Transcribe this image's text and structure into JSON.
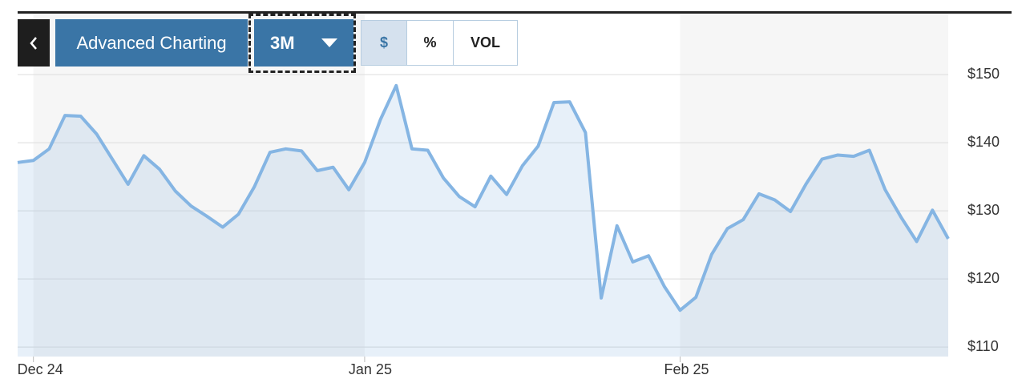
{
  "toolbar": {
    "title": "Advanced Charting",
    "range": "3M",
    "modes": [
      "$",
      "%",
      "VOL"
    ]
  },
  "chart_data": {
    "type": "area",
    "categories": [
      null,
      "Dec 24",
      null,
      null,
      null,
      null,
      null,
      null,
      null,
      null,
      null,
      null,
      null,
      null,
      null,
      null,
      null,
      null,
      null,
      null,
      null,
      null,
      "Jan 25",
      null,
      null,
      null,
      null,
      null,
      null,
      null,
      null,
      null,
      null,
      null,
      null,
      null,
      null,
      null,
      null,
      null,
      null,
      null,
      "Feb 25",
      null,
      null,
      null,
      null,
      null,
      null,
      null,
      null,
      null,
      null,
      null,
      null,
      null,
      null,
      null,
      null,
      null
    ],
    "series": [
      {
        "color": "#85b5e3",
        "values": [
          137.1,
          137.4,
          139.1,
          144.0,
          143.9,
          141.3,
          137.6,
          133.9,
          138.1,
          136.1,
          132.9,
          130.7,
          129.2,
          127.6,
          129.5,
          133.5,
          138.6,
          139.1,
          138.8,
          135.9,
          136.4,
          133.1,
          137.1,
          143.4,
          148.4,
          139.1,
          138.9,
          134.8,
          132.1,
          130.6,
          135.1,
          132.4,
          136.6,
          139.5,
          145.9,
          146.0,
          141.5,
          117.2,
          127.8,
          122.5,
          123.4,
          118.9,
          115.4,
          117.3,
          123.6,
          127.4,
          128.7,
          132.5,
          131.6,
          129.9,
          134.0,
          137.6,
          138.2,
          138.0,
          138.9,
          133.1,
          129.1,
          125.5,
          130.1,
          125.9
        ]
      }
    ],
    "ylim": [
      108.6,
      159.2
    ],
    "yticks": [
      {
        "value": 110,
        "label": "$110"
      },
      {
        "value": 120,
        "label": "$120"
      },
      {
        "value": 130,
        "label": "$130"
      },
      {
        "value": 140,
        "label": "$140"
      },
      {
        "value": 150,
        "label": "$150"
      }
    ],
    "grid": true
  }
}
